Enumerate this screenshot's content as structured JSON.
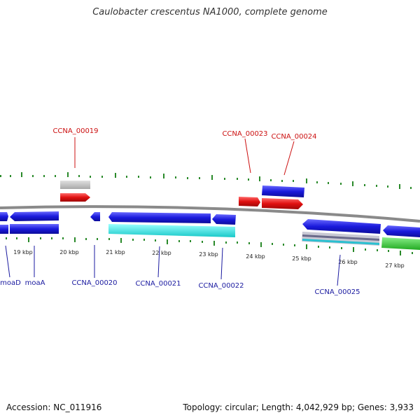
{
  "title": "Caulobacter crescentus NA1000, complete genome",
  "footer": {
    "accession": "Accession: NC_011916",
    "summary": "Topology: circular; Length: 4,042,929 bp; Genes: 3,933"
  },
  "colors": {
    "backbone": "#888888",
    "tick": "#2a8a2a",
    "cds": "#1a1adc",
    "rna": "#e01010",
    "gray_feature": "#b8b8b8",
    "cyan_feature": "#22e6e6",
    "green_feature": "#33cc33",
    "label_blue": "#1a1aa0",
    "label_red": "#cc1010"
  },
  "ruler": {
    "labels": [
      "19 kbp",
      "20 kbp",
      "21 kbp",
      "22 kbp",
      "23 kbp",
      "24 kbp",
      "25 kbp",
      "26 kbp",
      "27 kbp"
    ]
  },
  "genes_top": [
    {
      "name": "CCNA_00019"
    },
    {
      "name": "CCNA_00023"
    },
    {
      "name": "CCNA_00024"
    }
  ],
  "genes_bottom": [
    {
      "name": "moaD"
    },
    {
      "name": "moaA"
    },
    {
      "name": "CCNA_00020"
    },
    {
      "name": "CCNA_00021"
    },
    {
      "name": "CCNA_00022"
    },
    {
      "name": "CCNA_00025"
    }
  ]
}
